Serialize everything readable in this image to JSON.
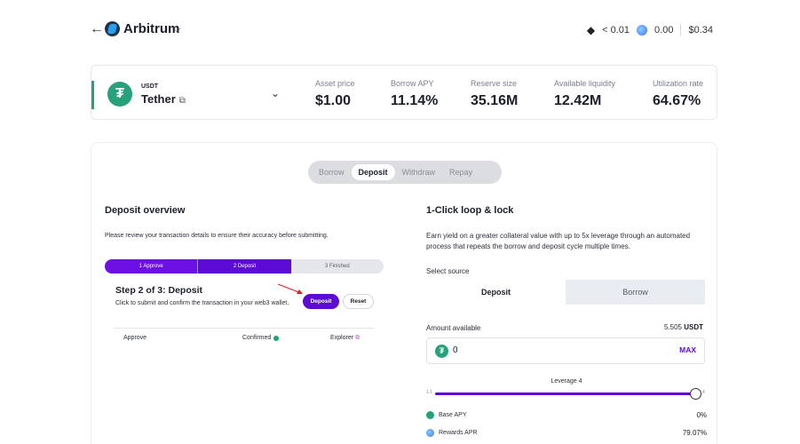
{
  "header": {
    "network_name": "Arbitrum",
    "eth_balance": "< 0.01",
    "rewards_balance": "0.00",
    "usd_value": "$0.34"
  },
  "asset": {
    "symbol": "USDT",
    "name": "Tether",
    "stats": [
      {
        "label": "Asset price",
        "value": "$1.00"
      },
      {
        "label": "Borrow APY",
        "value": "11.14%"
      },
      {
        "label": "Reserve size",
        "value": "35.16M"
      },
      {
        "label": "Available liquidity",
        "value": "12.42M"
      },
      {
        "label": "Utilization rate",
        "value": "64.67%"
      }
    ]
  },
  "tabs": [
    "Borrow",
    "Deposit",
    "Withdraw",
    "Repay"
  ],
  "active_tab": "Deposit",
  "deposit_overview": {
    "title": "Deposit overview",
    "description": "Please review your transaction details to ensure their accuracy before submitting.",
    "steps": [
      "1 Approve",
      "2 Deposit",
      "3 Finished"
    ],
    "step_title": "Step 2 of 3: Deposit",
    "step_description": "Click to submit and confirm the transaction in your web3 wallet.",
    "deposit_button": "Deposit",
    "reset_button": "Reset",
    "approve_row": {
      "label": "Approve",
      "status": "Confirmed",
      "explorer": "Explorer"
    }
  },
  "loop": {
    "title": "1-Click loop & lock",
    "description": "Earn yield on a greater collateral value with up to 5x leverage through an automated process that repeats the borrow and deposit cycle multiple times.",
    "select_source_label": "Select source",
    "source_options": [
      "Deposit",
      "Borrow"
    ],
    "active_source": "Deposit",
    "amount_label": "Amount available",
    "amount_available_value": "5.505",
    "amount_available_unit": "USDT",
    "amount_input_value": "0",
    "max_label": "MAX",
    "leverage_label": "Leverage 4",
    "slider_min": "1.1",
    "slider_max": "4",
    "leverage_fraction": 1.0,
    "rows": [
      {
        "label": "Base APY",
        "value": "0%"
      },
      {
        "label": "Rewards APR",
        "value": "79.07%"
      }
    ]
  },
  "colors": {
    "accent_purple": "#5b0bd4",
    "tether_green": "#26a17b",
    "confirmed_green": "#1aa86a"
  }
}
